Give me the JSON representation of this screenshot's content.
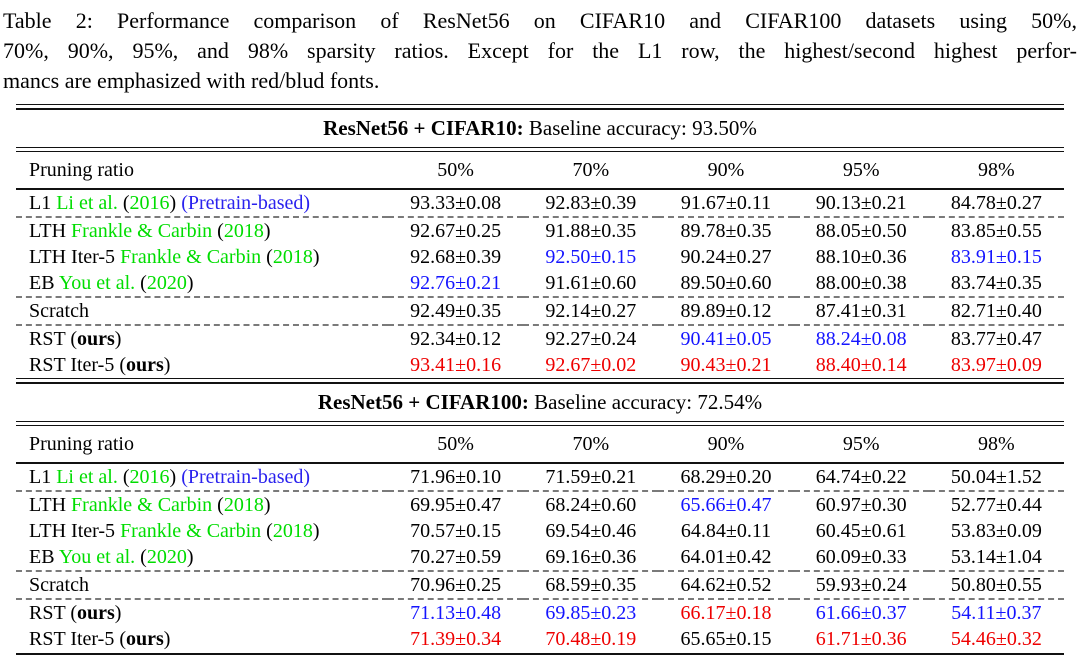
{
  "caption": {
    "lines": [
      "Table 2: Performance comparison of ResNet56 on CIFAR10 and CIFAR100 datasets using 50%,",
      "70%, 90%, 95%, and 98% sparsity ratios. Except for the L1 row, the highest/second highest perfor-",
      "mancs are emphasized with red/blud fonts."
    ]
  },
  "colors": {
    "citation_green": "#00dd00",
    "best_red": "#ee0000",
    "second_blue": "#1515ff",
    "link_blue": "#2a22ee",
    "text_black": "#000000",
    "dash_gray": "#7a7a7a"
  },
  "table": {
    "sections": [
      {
        "title_bold": "ResNet56 + CIFAR10:",
        "title_rest": " Baseline accuracy: 93.50%",
        "header": {
          "label": "Pruning ratio",
          "ratios": [
            "50%",
            "70%",
            "90%",
            "95%",
            "98%"
          ]
        },
        "rows": [
          {
            "label": [
              {
                "t": "L1 "
              },
              {
                "t": "Li et al.",
                "c": "g"
              },
              {
                "t": " ("
              },
              {
                "t": "2016",
                "c": "g"
              },
              {
                "t": ") "
              },
              {
                "t": "(Pretrain-based)",
                "c": "l"
              }
            ],
            "values": [
              {
                "t": "93.33±0.08",
                "c": "k"
              },
              {
                "t": "92.83±0.39",
                "c": "k"
              },
              {
                "t": "91.67±0.11",
                "c": "k"
              },
              {
                "t": "90.13±0.21",
                "c": "k"
              },
              {
                "t": "84.78±0.27",
                "c": "k"
              }
            ],
            "dashed_after": true
          },
          {
            "label": [
              {
                "t": "LTH "
              },
              {
                "t": "Frankle & Carbin",
                "c": "g"
              },
              {
                "t": " ("
              },
              {
                "t": "2018",
                "c": "g"
              },
              {
                "t": ")"
              }
            ],
            "values": [
              {
                "t": "92.67±0.25",
                "c": "k"
              },
              {
                "t": "91.88±0.35",
                "c": "k"
              },
              {
                "t": "89.78±0.35",
                "c": "k"
              },
              {
                "t": "88.05±0.50",
                "c": "k"
              },
              {
                "t": "83.85±0.55",
                "c": "k"
              }
            ],
            "dashed_after": false
          },
          {
            "label": [
              {
                "t": "LTH Iter-5 "
              },
              {
                "t": "Frankle & Carbin",
                "c": "g"
              },
              {
                "t": " ("
              },
              {
                "t": "2018",
                "c": "g"
              },
              {
                "t": ")"
              }
            ],
            "values": [
              {
                "t": "92.68±0.39",
                "c": "k"
              },
              {
                "t": "92.50±0.15",
                "c": "b"
              },
              {
                "t": "90.24±0.27",
                "c": "k"
              },
              {
                "t": "88.10±0.36",
                "c": "k"
              },
              {
                "t": "83.91±0.15",
                "c": "b"
              }
            ],
            "dashed_after": false
          },
          {
            "label": [
              {
                "t": "EB "
              },
              {
                "t": "You et al.",
                "c": "g"
              },
              {
                "t": " ("
              },
              {
                "t": "2020",
                "c": "g"
              },
              {
                "t": ")"
              }
            ],
            "values": [
              {
                "t": "92.76±0.21",
                "c": "b"
              },
              {
                "t": "91.61±0.60",
                "c": "k"
              },
              {
                "t": "89.50±0.60",
                "c": "k"
              },
              {
                "t": "88.00±0.38",
                "c": "k"
              },
              {
                "t": "83.74±0.35",
                "c": "k"
              }
            ],
            "dashed_after": true
          },
          {
            "label": [
              {
                "t": "Scratch"
              }
            ],
            "values": [
              {
                "t": "92.49±0.35",
                "c": "k"
              },
              {
                "t": "92.14±0.27",
                "c": "k"
              },
              {
                "t": "89.89±0.12",
                "c": "k"
              },
              {
                "t": "87.41±0.31",
                "c": "k"
              },
              {
                "t": "82.71±0.40",
                "c": "k"
              }
            ],
            "dashed_after": true
          },
          {
            "label": [
              {
                "t": "RST ("
              },
              {
                "t": "ours",
                "bold": true
              },
              {
                "t": ")"
              }
            ],
            "values": [
              {
                "t": "92.34±0.12",
                "c": "k"
              },
              {
                "t": "92.27±0.24",
                "c": "k"
              },
              {
                "t": "90.41±0.05",
                "c": "b"
              },
              {
                "t": "88.24±0.08",
                "c": "b"
              },
              {
                "t": "83.77±0.47",
                "c": "k"
              }
            ],
            "dashed_after": false
          },
          {
            "label": [
              {
                "t": "RST Iter-5 ("
              },
              {
                "t": "ours",
                "bold": true
              },
              {
                "t": ")"
              }
            ],
            "values": [
              {
                "t": "93.41±0.16",
                "c": "r"
              },
              {
                "t": "92.67±0.02",
                "c": "r"
              },
              {
                "t": "90.43±0.21",
                "c": "r"
              },
              {
                "t": "88.40±0.14",
                "c": "r"
              },
              {
                "t": "83.97±0.09",
                "c": "r"
              }
            ],
            "dashed_after": false
          }
        ]
      },
      {
        "title_bold": "ResNet56 + CIFAR100:",
        "title_rest": " Baseline accuracy: 72.54%",
        "header": {
          "label": "Pruning ratio",
          "ratios": [
            "50%",
            "70%",
            "90%",
            "95%",
            "98%"
          ]
        },
        "rows": [
          {
            "label": [
              {
                "t": "L1 "
              },
              {
                "t": "Li et al.",
                "c": "g"
              },
              {
                "t": " ("
              },
              {
                "t": "2016",
                "c": "g"
              },
              {
                "t": ") "
              },
              {
                "t": "(Pretrain-based)",
                "c": "l"
              }
            ],
            "values": [
              {
                "t": "71.96±0.10",
                "c": "k"
              },
              {
                "t": "71.59±0.21",
                "c": "k"
              },
              {
                "t": "68.29±0.20",
                "c": "k"
              },
              {
                "t": "64.74±0.22",
                "c": "k"
              },
              {
                "t": "50.04±1.52",
                "c": "k"
              }
            ],
            "dashed_after": true
          },
          {
            "label": [
              {
                "t": "LTH "
              },
              {
                "t": "Frankle & Carbin",
                "c": "g"
              },
              {
                "t": " ("
              },
              {
                "t": "2018",
                "c": "g"
              },
              {
                "t": ")"
              }
            ],
            "values": [
              {
                "t": "69.95±0.47",
                "c": "k"
              },
              {
                "t": "68.24±0.60",
                "c": "k"
              },
              {
                "t": "65.66±0.47",
                "c": "b"
              },
              {
                "t": "60.97±0.30",
                "c": "k"
              },
              {
                "t": "52.77±0.44",
                "c": "k"
              }
            ],
            "dashed_after": false
          },
          {
            "label": [
              {
                "t": "LTH Iter-5 "
              },
              {
                "t": "Frankle & Carbin",
                "c": "g"
              },
              {
                "t": " ("
              },
              {
                "t": "2018",
                "c": "g"
              },
              {
                "t": ")"
              }
            ],
            "values": [
              {
                "t": "70.57±0.15",
                "c": "k"
              },
              {
                "t": "69.54±0.46",
                "c": "k"
              },
              {
                "t": "64.84±0.11",
                "c": "k"
              },
              {
                "t": "60.45±0.61",
                "c": "k"
              },
              {
                "t": "53.83±0.09",
                "c": "k"
              }
            ],
            "dashed_after": false
          },
          {
            "label": [
              {
                "t": "EB "
              },
              {
                "t": "You et al.",
                "c": "g"
              },
              {
                "t": " ("
              },
              {
                "t": "2020",
                "c": "g"
              },
              {
                "t": ")"
              }
            ],
            "values": [
              {
                "t": "70.27±0.59",
                "c": "k"
              },
              {
                "t": "69.16±0.36",
                "c": "k"
              },
              {
                "t": "64.01±0.42",
                "c": "k"
              },
              {
                "t": "60.09±0.33",
                "c": "k"
              },
              {
                "t": "53.14±1.04",
                "c": "k"
              }
            ],
            "dashed_after": true
          },
          {
            "label": [
              {
                "t": "Scratch"
              }
            ],
            "values": [
              {
                "t": "70.96±0.25",
                "c": "k"
              },
              {
                "t": "68.59±0.35",
                "c": "k"
              },
              {
                "t": "64.62±0.52",
                "c": "k"
              },
              {
                "t": "59.93±0.24",
                "c": "k"
              },
              {
                "t": "50.80±0.55",
                "c": "k"
              }
            ],
            "dashed_after": true
          },
          {
            "label": [
              {
                "t": "RST ("
              },
              {
                "t": "ours",
                "bold": true
              },
              {
                "t": ")"
              }
            ],
            "values": [
              {
                "t": "71.13±0.48",
                "c": "b"
              },
              {
                "t": "69.85±0.23",
                "c": "b"
              },
              {
                "t": "66.17±0.18",
                "c": "r"
              },
              {
                "t": "61.66±0.37",
                "c": "b"
              },
              {
                "t": "54.11±0.37",
                "c": "b"
              }
            ],
            "dashed_after": false
          },
          {
            "label": [
              {
                "t": "RST Iter-5 ("
              },
              {
                "t": "ours",
                "bold": true
              },
              {
                "t": ")"
              }
            ],
            "values": [
              {
                "t": "71.39±0.34",
                "c": "r"
              },
              {
                "t": "70.48±0.19",
                "c": "r"
              },
              {
                "t": "65.65±0.15",
                "c": "k"
              },
              {
                "t": "61.71±0.36",
                "c": "r"
              },
              {
                "t": "54.46±0.32",
                "c": "r"
              }
            ],
            "dashed_after": false
          }
        ]
      }
    ]
  }
}
